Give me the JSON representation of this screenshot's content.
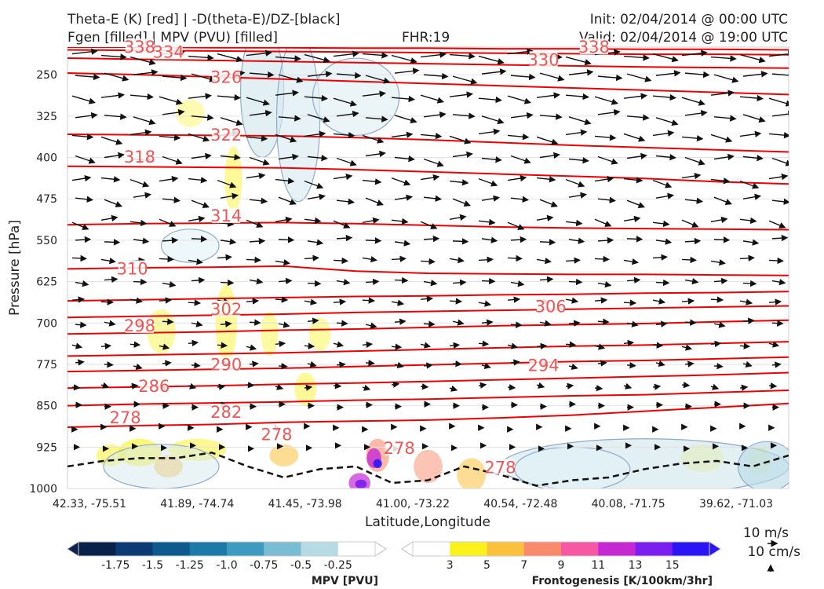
{
  "header": {
    "title_line1": "Theta-E (K) [red] | -D(theta-E)/DZ-[black]",
    "title_line2": "Fgen [filled] | MPV (PVU) [filled]",
    "fhr": "FHR:19",
    "init": "Init: 02/04/2014 @ 00:00 UTC",
    "valid": "Valid: 02/04/2014 @ 19:00 UTC"
  },
  "chart_data": {
    "type": "cross-section",
    "xlabel": "Latitude,Longitude",
    "ylabel": "Pressure [hPa]",
    "x_ticks": [
      "42.33, -75.51",
      "41.89, -74.74",
      "41.45, -73.98",
      "41.00, -73.22",
      "40.54, -72.48",
      "40.08, -71.75",
      "39.62, -71.03"
    ],
    "y_ticks": [
      250,
      325,
      400,
      475,
      550,
      625,
      700,
      775,
      850,
      925,
      1000
    ],
    "ylim": [
      1000,
      200
    ],
    "theta_e_contours": [
      {
        "label": "278",
        "points": [
          [
            0,
            889
          ],
          [
            10,
            886
          ],
          [
            20,
            884
          ],
          [
            30,
            880
          ],
          [
            40,
            878
          ],
          [
            50,
            876
          ],
          [
            60,
            872
          ],
          [
            70,
            867
          ],
          [
            80,
            860
          ],
          [
            90,
            853
          ],
          [
            100,
            846
          ]
        ]
      },
      {
        "label": "282",
        "points": [
          [
            0,
            850
          ],
          [
            10,
            847
          ],
          [
            20,
            845
          ],
          [
            30,
            843
          ],
          [
            40,
            840
          ],
          [
            50,
            838
          ],
          [
            60,
            835
          ],
          [
            70,
            832
          ],
          [
            80,
            830
          ],
          [
            90,
            826
          ],
          [
            100,
            822
          ]
        ]
      },
      {
        "label": "286",
        "points": [
          [
            0,
            818
          ],
          [
            10,
            816
          ],
          [
            20,
            814
          ],
          [
            30,
            811
          ],
          [
            40,
            809
          ],
          [
            50,
            806
          ],
          [
            60,
            803
          ],
          [
            70,
            800
          ],
          [
            80,
            797
          ],
          [
            90,
            794
          ],
          [
            100,
            790
          ]
        ]
      },
      {
        "label": "290",
        "points": [
          [
            0,
            788
          ],
          [
            10,
            786
          ],
          [
            20,
            784
          ],
          [
            30,
            782
          ],
          [
            40,
            779
          ],
          [
            50,
            776
          ],
          [
            60,
            773
          ],
          [
            70,
            770
          ],
          [
            80,
            768
          ],
          [
            90,
            765
          ],
          [
            100,
            762
          ]
        ]
      },
      {
        "label": "294",
        "points": [
          [
            0,
            760
          ],
          [
            10,
            758
          ],
          [
            20,
            756
          ],
          [
            30,
            754
          ],
          [
            40,
            751
          ],
          [
            50,
            748
          ],
          [
            60,
            745
          ],
          [
            70,
            742
          ],
          [
            80,
            740
          ],
          [
            90,
            737
          ],
          [
            100,
            734
          ]
        ]
      },
      {
        "label": "298",
        "points": [
          [
            0,
            720
          ],
          [
            10,
            718
          ],
          [
            20,
            716
          ],
          [
            30,
            713
          ],
          [
            40,
            711
          ],
          [
            50,
            708
          ],
          [
            60,
            705
          ],
          [
            70,
            703
          ],
          [
            80,
            701
          ],
          [
            90,
            698
          ],
          [
            100,
            695
          ]
        ]
      },
      {
        "label": "302",
        "points": [
          [
            0,
            690
          ],
          [
            10,
            688
          ],
          [
            20,
            686
          ],
          [
            30,
            684
          ],
          [
            40,
            681
          ],
          [
            50,
            679
          ],
          [
            60,
            677
          ],
          [
            70,
            675
          ],
          [
            80,
            673
          ],
          [
            90,
            671
          ],
          [
            100,
            669
          ]
        ]
      },
      {
        "label": "306",
        "points": [
          [
            0,
            660
          ],
          [
            10,
            658
          ],
          [
            20,
            656
          ],
          [
            30,
            654
          ],
          [
            40,
            652
          ],
          [
            50,
            651
          ],
          [
            60,
            649
          ],
          [
            70,
            648
          ],
          [
            80,
            646
          ],
          [
            90,
            645
          ],
          [
            100,
            643
          ]
        ]
      },
      {
        "label": "310",
        "points": [
          [
            0,
            602
          ],
          [
            10,
            600
          ],
          [
            20,
            599
          ],
          [
            30,
            597
          ],
          [
            40,
            606
          ],
          [
            50,
            610
          ],
          [
            60,
            611
          ],
          [
            70,
            612
          ],
          [
            80,
            612
          ],
          [
            90,
            613
          ],
          [
            100,
            614
          ]
        ]
      },
      {
        "label": "314",
        "points": [
          [
            0,
            522
          ],
          [
            10,
            520
          ],
          [
            20,
            519
          ],
          [
            30,
            518
          ],
          [
            40,
            520
          ],
          [
            50,
            523
          ],
          [
            60,
            526
          ],
          [
            70,
            528
          ],
          [
            80,
            529
          ],
          [
            90,
            530
          ],
          [
            100,
            531
          ]
        ]
      },
      {
        "label": "318",
        "points": [
          [
            0,
            416
          ],
          [
            10,
            417
          ],
          [
            20,
            418
          ],
          [
            30,
            419
          ],
          [
            40,
            422
          ],
          [
            50,
            426
          ],
          [
            60,
            430
          ],
          [
            70,
            434
          ],
          [
            80,
            438
          ],
          [
            90,
            444
          ],
          [
            100,
            448
          ]
        ]
      },
      {
        "label": "322",
        "points": [
          [
            0,
            358
          ],
          [
            10,
            359
          ],
          [
            20,
            360
          ],
          [
            30,
            361
          ],
          [
            40,
            364
          ],
          [
            50,
            368
          ],
          [
            60,
            373
          ],
          [
            70,
            378
          ],
          [
            80,
            382
          ],
          [
            90,
            386
          ],
          [
            100,
            390
          ]
        ]
      },
      {
        "label": "326",
        "points": [
          [
            0,
            247
          ],
          [
            10,
            250
          ],
          [
            20,
            254
          ],
          [
            30,
            258
          ],
          [
            40,
            262
          ],
          [
            50,
            266
          ],
          [
            60,
            270
          ],
          [
            70,
            274
          ],
          [
            80,
            278
          ],
          [
            90,
            282
          ],
          [
            100,
            286
          ]
        ]
      },
      {
        "label": "330",
        "points": [
          [
            0,
            220
          ],
          [
            10,
            222
          ],
          [
            20,
            224
          ],
          [
            30,
            226
          ],
          [
            40,
            228
          ],
          [
            50,
            230
          ],
          [
            60,
            232
          ],
          [
            70,
            234
          ],
          [
            80,
            236
          ],
          [
            90,
            237
          ],
          [
            100,
            238
          ]
        ]
      },
      {
        "label": "334",
        "points": [
          [
            0,
            205
          ],
          [
            10,
            206
          ],
          [
            20,
            207
          ],
          [
            30,
            208
          ],
          [
            40,
            209
          ],
          [
            50,
            210
          ],
          [
            60,
            211
          ],
          [
            70,
            212
          ],
          [
            80,
            213
          ],
          [
            90,
            213
          ],
          [
            100,
            214
          ]
        ]
      },
      {
        "label": "338",
        "points": [
          [
            0,
            200
          ],
          [
            10,
            200
          ],
          [
            20,
            201
          ],
          [
            30,
            201
          ],
          [
            40,
            202
          ],
          [
            50,
            202
          ],
          [
            60,
            203
          ],
          [
            70,
            203
          ],
          [
            80,
            204
          ],
          [
            90,
            204
          ],
          [
            100,
            205
          ]
        ]
      }
    ],
    "inline_labels": [
      {
        "text": "278",
        "x": 8,
        "p": 875
      },
      {
        "text": "278",
        "x": 29,
        "p": 905
      },
      {
        "text": "278",
        "x": 46,
        "p": 930
      },
      {
        "text": "278",
        "x": 60,
        "p": 965
      },
      {
        "text": "282",
        "x": 22,
        "p": 865
      },
      {
        "text": "286",
        "x": 12,
        "p": 818
      },
      {
        "text": "290",
        "x": 22,
        "p": 779
      },
      {
        "text": "294",
        "x": 66,
        "p": 780
      },
      {
        "text": "298",
        "x": 10,
        "p": 708
      },
      {
        "text": "302",
        "x": 22,
        "p": 678
      },
      {
        "text": "306",
        "x": 67,
        "p": 673
      },
      {
        "text": "310",
        "x": 9,
        "p": 605
      },
      {
        "text": "314",
        "x": 22,
        "p": 509
      },
      {
        "text": "318",
        "x": 10,
        "p": 402
      },
      {
        "text": "322",
        "x": 22,
        "p": 362
      },
      {
        "text": "326",
        "x": 22,
        "p": 258
      },
      {
        "text": "330",
        "x": 66,
        "p": 226
      },
      {
        "text": "334",
        "x": 14,
        "p": 212
      },
      {
        "text": "338",
        "x": 10,
        "p": 203
      },
      {
        "text": "338",
        "x": 73,
        "p": 203
      }
    ],
    "dashed_contour": [
      [
        0,
        960
      ],
      [
        5,
        950
      ],
      [
        10,
        945
      ],
      [
        15,
        945
      ],
      [
        20,
        935
      ],
      [
        25,
        960
      ],
      [
        30,
        980
      ],
      [
        35,
        965
      ],
      [
        40,
        960
      ],
      [
        45,
        990
      ],
      [
        50,
        985
      ],
      [
        55,
        960
      ],
      [
        60,
        975
      ],
      [
        65,
        995
      ],
      [
        70,
        985
      ],
      [
        75,
        980
      ],
      [
        80,
        965
      ],
      [
        85,
        955
      ],
      [
        90,
        950
      ],
      [
        95,
        960
      ],
      [
        100,
        940
      ]
    ],
    "wind_levels": [
      215,
      250,
      290,
      325,
      360,
      400,
      440,
      475,
      515,
      550,
      585,
      625,
      660,
      700,
      740,
      775,
      815,
      850,
      890,
      925
    ],
    "mpv_colorbar": {
      "title": "MPV [PVU]",
      "ticks": [
        "-1.75",
        "-1.5",
        "-1.25",
        "-1.0",
        "-0.75",
        "-0.5",
        "-0.25"
      ],
      "colors": [
        "#08224a",
        "#0c3a73",
        "#0e5a8f",
        "#1b7aa8",
        "#3e9bc0",
        "#79bcd3",
        "#b7dbe5",
        "#ffffff"
      ]
    },
    "fgen_colorbar": {
      "title": "Frontogenesis [K/100km/3hr]",
      "ticks": [
        "3",
        "5",
        "7",
        "9",
        "11",
        "13",
        "15"
      ],
      "colors": [
        "#ffffff",
        "#fbf21b",
        "#fbc03c",
        "#fa8a6c",
        "#f658a3",
        "#c629d4",
        "#7b1ef0",
        "#2a16f5"
      ]
    },
    "wind_key": {
      "top": "10 m/s",
      "bottom": "10 cm/s"
    }
  }
}
